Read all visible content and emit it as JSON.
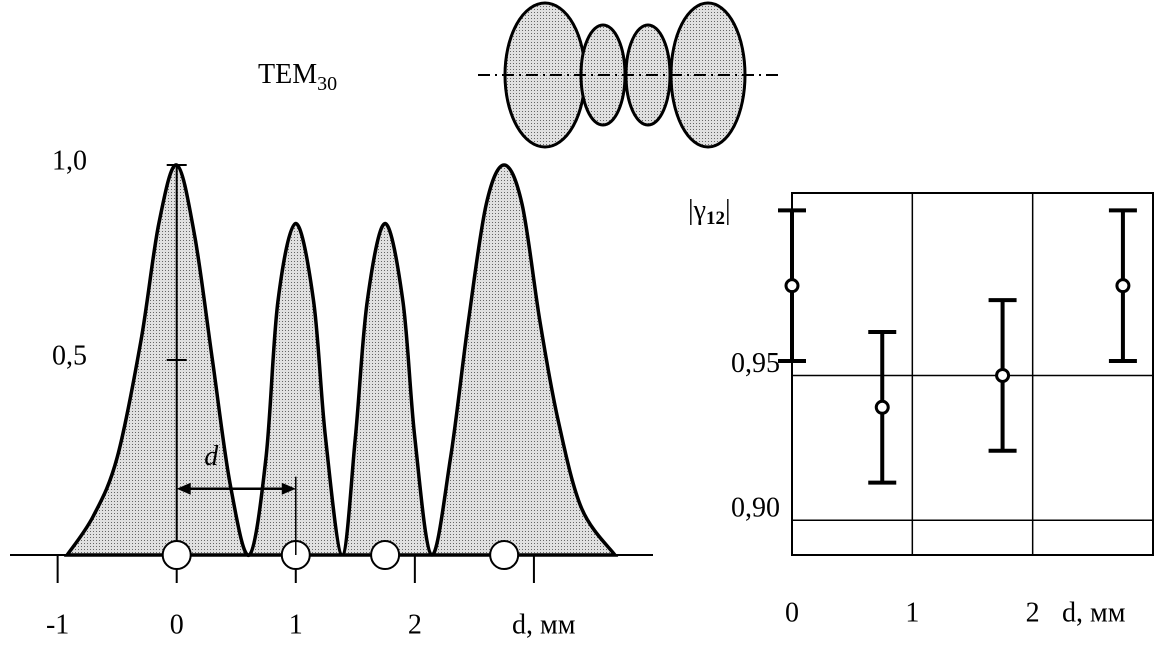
{
  "chart_data": [
    {
      "type": "area",
      "annotation_title": "TEM",
      "annotation_subscript": "30",
      "xlabel": "d,  мм",
      "x": [
        -0.92,
        -0.7,
        -0.5,
        -0.3,
        -0.15,
        0,
        0.15,
        0.3,
        0.45,
        0.61,
        0.75,
        0.85,
        1.0,
        1.15,
        1.25,
        1.39,
        1.5,
        1.6,
        1.75,
        1.9,
        2.0,
        2.14,
        2.3,
        2.45,
        2.6,
        2.75,
        2.9,
        3.05,
        3.2,
        3.4,
        3.68
      ],
      "values": [
        0,
        0.1,
        0.25,
        0.55,
        0.85,
        1.0,
        0.82,
        0.5,
        0.18,
        0,
        0.25,
        0.65,
        0.85,
        0.65,
        0.3,
        0,
        0.3,
        0.65,
        0.85,
        0.65,
        0.3,
        0,
        0.25,
        0.6,
        0.9,
        1.0,
        0.9,
        0.6,
        0.35,
        0.12,
        0
      ],
      "color": "#c8c8c8",
      "markers": [
        0,
        1,
        1.75,
        2.75
      ],
      "arrow": {
        "text": "d",
        "from": 0,
        "to": 1,
        "y": 0.17
      },
      "xlim": [
        -1.4,
        4.0
      ],
      "ylim": [
        0,
        1.0
      ],
      "xticks": [
        -1,
        0,
        1,
        2,
        {
          "value": 3,
          "label": null
        }
      ],
      "yticks": [
        {
          "value": 0.5,
          "label": "0,5"
        },
        {
          "value": 1.0,
          "label": "1,0"
        }
      ]
    },
    {
      "type": "errorbar",
      "ylabel": "|γ",
      "ylabel_subscript": "12",
      "ylabel_end": "|",
      "xlabel": "d, мм",
      "series": [
        {
          "x": [
            0,
            0.75,
            1.75,
            2.75
          ],
          "values": [
            0.981,
            0.939,
            0.95,
            0.981
          ],
          "errors": [
            0.026,
            0.026,
            0.026,
            0.026
          ],
          "color": "#000000"
        }
      ],
      "xlim": [
        0,
        3
      ],
      "ylim": [
        0.888,
        1.013
      ],
      "xticks": [
        0,
        1,
        2
      ],
      "yticks": [
        {
          "value": 0.9,
          "label": "0,90"
        },
        {
          "value": 0.95,
          "label": "0,95"
        }
      ],
      "grid": true
    }
  ]
}
